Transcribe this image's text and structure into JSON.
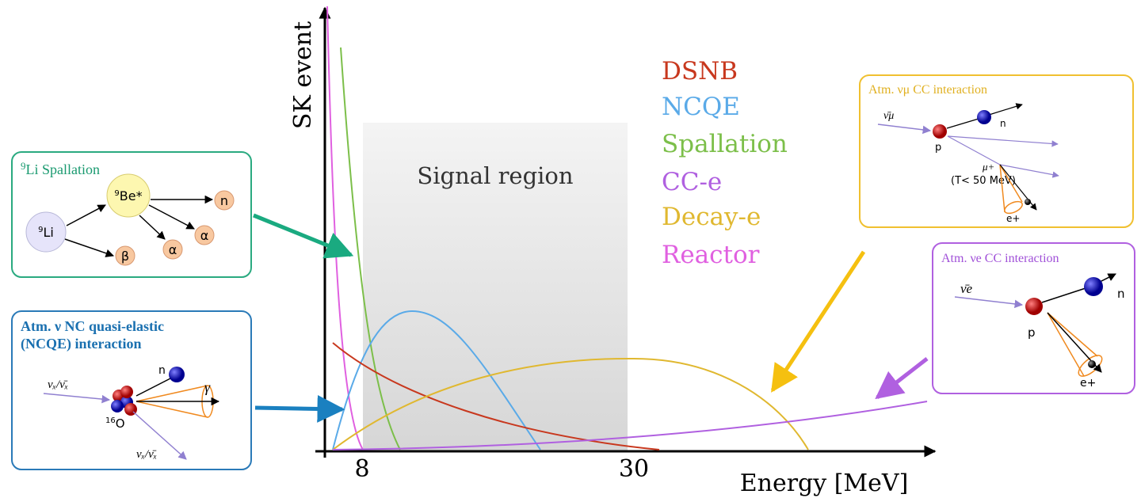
{
  "axis": {
    "y_label": "SK event",
    "x_label": "Energy [MeV]",
    "x_ticks": [
      "8",
      "30"
    ]
  },
  "signal_region": "Signal region",
  "legend": [
    "DSNB",
    "NCQE",
    "Spallation",
    "CC-e",
    "Decay-e",
    "Reactor"
  ],
  "li_box": {
    "title_sup": "9",
    "title": "Li Spallation",
    "parent_sup": "9",
    "parent": "Li",
    "daughter_sup": "9",
    "daughter": "Be*",
    "products": [
      "n",
      "α",
      "α",
      "β"
    ]
  },
  "ncqe_box": {
    "title": [
      "Atm. ν NC quasi-elastic",
      "(NCQE) interaction"
    ],
    "incoming": "νₓ/ν̄ₓ",
    "target_sup": "16",
    "target": "O",
    "neutron": "n",
    "gamma": "γ",
    "outgoing": "νₓ/ν̄ₓ"
  },
  "numu_box": {
    "title": "Atm. νμ CC interaction",
    "incoming": "ν̄μ",
    "proton": "p",
    "neutron": "n",
    "muon": "μ+",
    "muon_energy": "(T< 50 MeV)",
    "positron": "e+"
  },
  "nue_box": {
    "title": "Atm. νe CC interaction",
    "incoming": "ν̄e",
    "proton": "p",
    "neutron": "n",
    "positron": "e+"
  }
}
